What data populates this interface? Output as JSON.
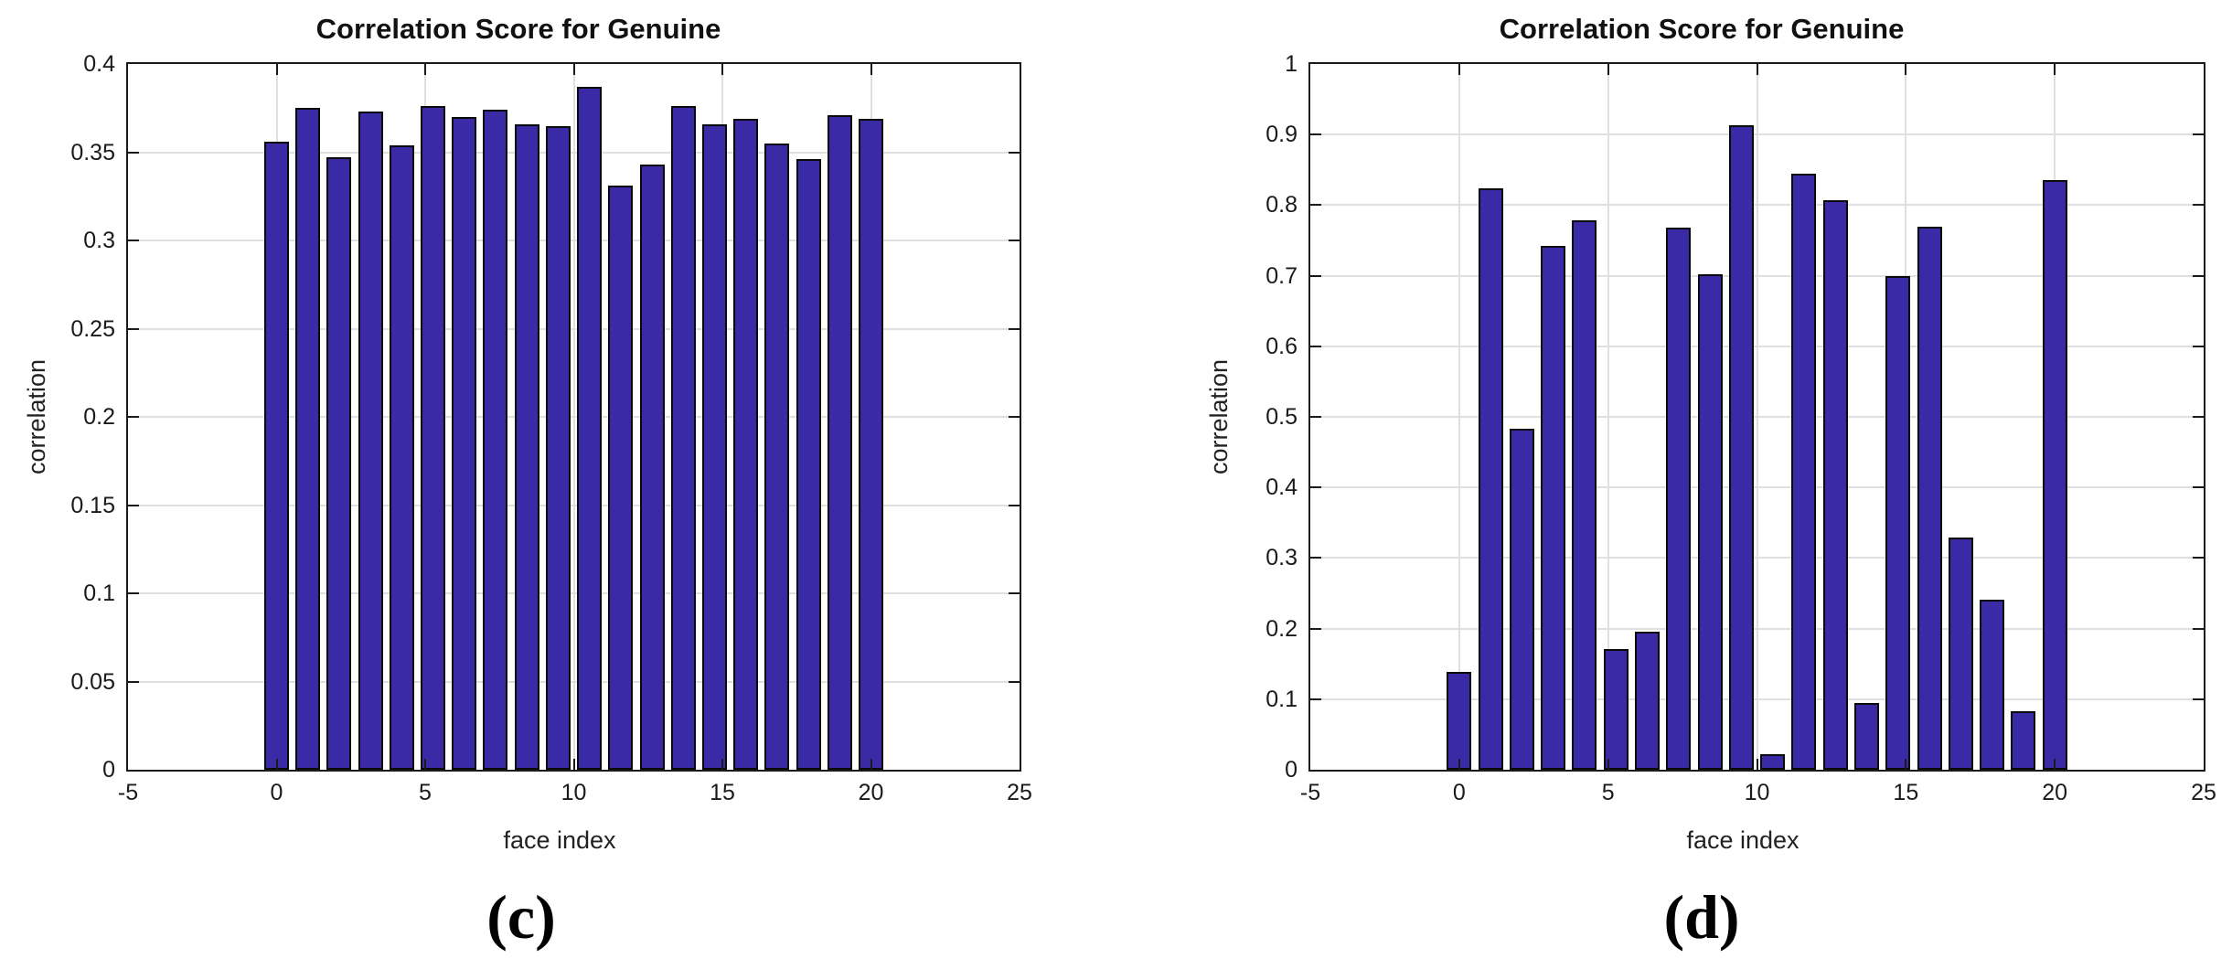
{
  "figure": {
    "captions": [
      {
        "label": "(c)"
      },
      {
        "label": "(d)"
      }
    ]
  },
  "chart_data": [
    {
      "type": "bar",
      "title": "Correlation Score for Genuine",
      "xlabel": "face index",
      "ylabel": "correlation",
      "xlim": [
        -5,
        25
      ],
      "ylim": [
        0,
        0.4
      ],
      "x_ticks": [
        -5,
        0,
        5,
        10,
        15,
        20,
        25
      ],
      "x_tick_labels": [
        "-5",
        "0",
        "5",
        "10",
        "15",
        "20",
        "25"
      ],
      "y_ticks": [
        0,
        0.05,
        0.1,
        0.15,
        0.2,
        0.25,
        0.3,
        0.35,
        0.4
      ],
      "y_tick_labels": [
        "0",
        "0.05",
        "0.1",
        "0.15",
        "0.2",
        "0.25",
        "0.3",
        "0.35",
        "0.4"
      ],
      "bars_span_x": [
        0,
        20
      ],
      "values": [
        0.356,
        0.375,
        0.347,
        0.373,
        0.354,
        0.376,
        0.37,
        0.374,
        0.366,
        0.365,
        0.387,
        0.331,
        0.343,
        0.376,
        0.366,
        0.369,
        0.355,
        0.346,
        0.371,
        0.369
      ],
      "bar_color": "#3B2AA5",
      "bar_edge_color": "#0a0a0a",
      "grid": true,
      "legend_position": "none"
    },
    {
      "type": "bar",
      "title": "Correlation Score for Genuine",
      "xlabel": "face index",
      "ylabel": "correlation",
      "xlim": [
        -5,
        25
      ],
      "ylim": [
        0,
        1
      ],
      "x_ticks": [
        -5,
        0,
        5,
        10,
        15,
        20,
        25
      ],
      "x_tick_labels": [
        "-5",
        "0",
        "5",
        "10",
        "15",
        "20",
        "25"
      ],
      "y_ticks": [
        0,
        0.1,
        0.2,
        0.3,
        0.4,
        0.5,
        0.6,
        0.7,
        0.8,
        0.9,
        1
      ],
      "y_tick_labels": [
        "0",
        "0.1",
        "0.2",
        "0.3",
        "0.4",
        "0.5",
        "0.6",
        "0.7",
        "0.8",
        "0.9",
        "1"
      ],
      "bars_span_x": [
        0,
        20
      ],
      "values": [
        0.138,
        0.824,
        0.483,
        0.742,
        0.779,
        0.171,
        0.195,
        0.768,
        0.702,
        0.913,
        0.022,
        0.845,
        0.807,
        0.095,
        0.699,
        0.769,
        0.329,
        0.241,
        0.083,
        0.836
      ],
      "bar_color": "#3B2AA5",
      "bar_edge_color": "#0a0a0a",
      "grid": true,
      "legend_position": "none"
    }
  ]
}
